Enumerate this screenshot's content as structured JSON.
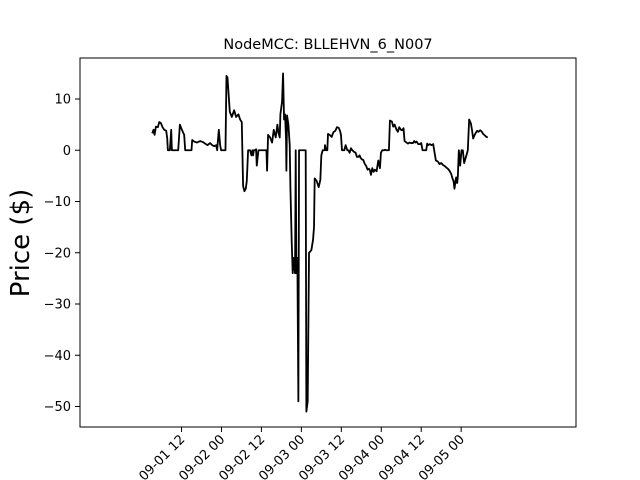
{
  "chart_data": {
    "type": "line",
    "title": "NodeMCC: BLLEHVN_6_N007",
    "xlabel": "",
    "ylabel": "Price ($)",
    "ylim": [
      -54,
      18
    ],
    "xlim_hours": [
      -18.5,
      130.5
    ],
    "grid": false,
    "legend": "none",
    "x_ticks": [
      {
        "label": "09-01 12",
        "hour": 12
      },
      {
        "label": "09-02 00",
        "hour": 24
      },
      {
        "label": "09-02 12",
        "hour": 36
      },
      {
        "label": "09-03 00",
        "hour": 48
      },
      {
        "label": "09-03 12",
        "hour": 60
      },
      {
        "label": "09-04 00",
        "hour": 72
      },
      {
        "label": "09-04 12",
        "hour": 84
      },
      {
        "label": "09-05 00",
        "hour": 96
      }
    ],
    "y_ticks": [
      10,
      0,
      -10,
      -20,
      -30,
      -40,
      -50
    ],
    "series": [
      {
        "color": "#000000",
        "points": [
          [
            3.2,
            3.3
          ],
          [
            3.6,
            4.0
          ],
          [
            3.9,
            3.0
          ],
          [
            4.3,
            4.6
          ],
          [
            4.9,
            4.5
          ],
          [
            5.3,
            5.5
          ],
          [
            5.8,
            5.3
          ],
          [
            6.3,
            4.5
          ],
          [
            6.8,
            4.0
          ],
          [
            7.4,
            3.8
          ],
          [
            7.7,
            2.3
          ],
          [
            7.9,
            0
          ],
          [
            8.5,
            0
          ],
          [
            8.9,
            4.0
          ],
          [
            9.1,
            0
          ],
          [
            10.2,
            0
          ],
          [
            11.0,
            0
          ],
          [
            11.5,
            5.0
          ],
          [
            12.1,
            4.0
          ],
          [
            12.8,
            3.0
          ],
          [
            13.1,
            0
          ],
          [
            13.9,
            0
          ],
          [
            15.0,
            0
          ],
          [
            15.2,
            2.0
          ],
          [
            15.8,
            1.7
          ],
          [
            16.6,
            1.5
          ],
          [
            17.6,
            1.8
          ],
          [
            18.4,
            1.6
          ],
          [
            19.1,
            1.3
          ],
          [
            19.8,
            1.0
          ],
          [
            20.6,
            1.4
          ],
          [
            21.2,
            1.0
          ],
          [
            21.8,
            0.8
          ],
          [
            22.4,
            1.0
          ],
          [
            22.7,
            0
          ],
          [
            23.2,
            4.0
          ],
          [
            23.6,
            1.0
          ],
          [
            23.9,
            0
          ],
          [
            24.6,
            0
          ],
          [
            25.2,
            0
          ],
          [
            25.5,
            14.5
          ],
          [
            25.8,
            14.2
          ],
          [
            26.5,
            7.5
          ],
          [
            27.1,
            6.5
          ],
          [
            27.8,
            7.8
          ],
          [
            28.4,
            6.5
          ],
          [
            29.1,
            7.0
          ],
          [
            29.6,
            6.0
          ],
          [
            30.1,
            5.5
          ],
          [
            30.5,
            -7.0
          ],
          [
            30.9,
            -8.0
          ],
          [
            31.3,
            -7.5
          ],
          [
            31.6,
            -6.0
          ],
          [
            32.0,
            0
          ],
          [
            32.6,
            0
          ],
          [
            33.0,
            -1.0
          ],
          [
            33.3,
            0
          ],
          [
            33.5,
            -1.0
          ],
          [
            33.7,
            0
          ],
          [
            34.1,
            0
          ],
          [
            34.4,
            0.2
          ],
          [
            34.6,
            -3.0
          ],
          [
            35.1,
            0
          ],
          [
            36.3,
            0
          ],
          [
            37.5,
            0
          ],
          [
            37.7,
            -4.0
          ],
          [
            38.0,
            3.0
          ],
          [
            38.6,
            2.5
          ],
          [
            39.2,
            1.5
          ],
          [
            39.7,
            4.0
          ],
          [
            40.3,
            2.5
          ],
          [
            40.8,
            5.0
          ],
          [
            41.1,
            3.5
          ],
          [
            41.5,
            2.5
          ],
          [
            41.7,
            7.0
          ],
          [
            42.2,
            9.5
          ],
          [
            42.5,
            15.0
          ],
          [
            42.8,
            6.0
          ],
          [
            43.1,
            7.0
          ],
          [
            43.4,
            2.0
          ],
          [
            43.5,
            -4.0
          ],
          [
            43.7,
            6.8
          ],
          [
            44.1,
            5.0
          ],
          [
            44.5,
            1.0
          ],
          [
            44.7,
            -7.0
          ],
          [
            45.1,
            -18.0
          ],
          [
            45.4,
            -24.0
          ],
          [
            45.7,
            -21.0
          ],
          [
            46.1,
            -24.0
          ],
          [
            46.3,
            0
          ],
          [
            46.5,
            -24.0
          ],
          [
            46.8,
            -21.0
          ],
          [
            47.1,
            -49.0
          ],
          [
            47.3,
            0
          ],
          [
            47.5,
            0
          ],
          [
            48.0,
            0
          ],
          [
            48.8,
            0
          ],
          [
            49.3,
            0
          ],
          [
            49.5,
            -51.0
          ],
          [
            49.9,
            -49.0
          ],
          [
            50.3,
            -20.0
          ],
          [
            51.0,
            -19.5
          ],
          [
            51.5,
            -17.5
          ],
          [
            51.8,
            -15.0
          ],
          [
            52.0,
            -5.5
          ],
          [
            52.6,
            -6.0
          ],
          [
            53.2,
            -7.2
          ],
          [
            53.7,
            -5.8
          ],
          [
            54.0,
            -1.0
          ],
          [
            54.4,
            0
          ],
          [
            55.0,
            0
          ],
          [
            55.1,
            1.0
          ],
          [
            55.4,
            0
          ],
          [
            55.8,
            0
          ],
          [
            56.0,
            3.2
          ],
          [
            56.5,
            3.0
          ],
          [
            57.1,
            2.6
          ],
          [
            57.6,
            3.5
          ],
          [
            58.2,
            3.8
          ],
          [
            58.7,
            4.5
          ],
          [
            59.2,
            4.4
          ],
          [
            59.6,
            3.8
          ],
          [
            59.9,
            3.0
          ],
          [
            60.2,
            0
          ],
          [
            60.9,
            0
          ],
          [
            61.3,
            1.0
          ],
          [
            61.8,
            0
          ],
          [
            62.1,
            0
          ],
          [
            62.5,
            -0.5
          ],
          [
            62.9,
            0.4
          ],
          [
            63.3,
            0
          ],
          [
            63.8,
            -0.3
          ],
          [
            64.3,
            -0.5
          ],
          [
            64.7,
            -1.3
          ],
          [
            65.1,
            -1.3
          ],
          [
            65.5,
            -1.0
          ],
          [
            65.8,
            -1.5
          ],
          [
            66.2,
            -1.8
          ],
          [
            66.6,
            -1.9
          ],
          [
            67.0,
            -2.6
          ],
          [
            67.5,
            -3.1
          ],
          [
            67.9,
            -3.8
          ],
          [
            68.3,
            -3.6
          ],
          [
            68.6,
            -3.9
          ],
          [
            68.9,
            -4.8
          ],
          [
            69.3,
            -3.5
          ],
          [
            69.7,
            -4.2
          ],
          [
            70.1,
            -3.8
          ],
          [
            70.6,
            -4.1
          ],
          [
            71.1,
            -2.0
          ],
          [
            71.6,
            -3.5
          ],
          [
            71.9,
            -0.5
          ],
          [
            72.3,
            0
          ],
          [
            72.8,
            0
          ],
          [
            73.2,
            0.1
          ],
          [
            73.5,
            0
          ],
          [
            74.0,
            0
          ],
          [
            74.3,
            0
          ],
          [
            74.6,
            5.8
          ],
          [
            75.2,
            5.6
          ],
          [
            75.6,
            4.6
          ],
          [
            76.0,
            5.0
          ],
          [
            76.6,
            4.0
          ],
          [
            77.0,
            3.6
          ],
          [
            77.4,
            4.5
          ],
          [
            77.9,
            4.0
          ],
          [
            78.3,
            3.9
          ],
          [
            78.7,
            4.3
          ],
          [
            79.0,
            1.8
          ],
          [
            79.6,
            1.5
          ],
          [
            80.0,
            1.3
          ],
          [
            80.5,
            1.5
          ],
          [
            81.0,
            1.4
          ],
          [
            81.5,
            1.4
          ],
          [
            81.9,
            1.8
          ],
          [
            82.2,
            1.5
          ],
          [
            82.6,
            1.7
          ],
          [
            83.1,
            1.2
          ],
          [
            83.6,
            1.2
          ],
          [
            84.0,
            1.4
          ],
          [
            84.4,
            0
          ],
          [
            84.9,
            0
          ],
          [
            85.5,
            0
          ],
          [
            85.8,
            1.3
          ],
          [
            86.1,
            1.0
          ],
          [
            86.6,
            1.2
          ],
          [
            87.1,
            1.0
          ],
          [
            87.6,
            1.2
          ],
          [
            87.9,
            0
          ],
          [
            88.4,
            -2.0
          ],
          [
            89.0,
            -2.2
          ],
          [
            89.5,
            -2.7
          ],
          [
            90.0,
            -2.5
          ],
          [
            90.6,
            -2.9
          ],
          [
            91.1,
            -3.1
          ],
          [
            91.6,
            -3.4
          ],
          [
            92.0,
            -3.6
          ],
          [
            92.5,
            -4.0
          ],
          [
            93.0,
            -4.6
          ],
          [
            93.4,
            -5.5
          ],
          [
            93.7,
            -6.0
          ],
          [
            94.0,
            -7.5
          ],
          [
            94.3,
            -6.0
          ],
          [
            94.5,
            -5.3
          ],
          [
            94.8,
            -6.4
          ],
          [
            95.0,
            -5.2
          ],
          [
            95.3,
            0
          ],
          [
            95.7,
            -3.0
          ],
          [
            96.1,
            0
          ],
          [
            96.5,
            0
          ],
          [
            96.9,
            -2.5
          ],
          [
            97.3,
            -1.6
          ],
          [
            97.8,
            -0.5
          ],
          [
            98.0,
            0
          ],
          [
            98.4,
            6.0
          ],
          [
            98.9,
            5.3
          ],
          [
            99.3,
            3.8
          ],
          [
            99.6,
            2.3
          ],
          [
            100.0,
            2.9
          ],
          [
            100.4,
            3.4
          ],
          [
            100.8,
            3.8
          ],
          [
            101.2,
            3.6
          ],
          [
            101.7,
            3.9
          ],
          [
            102.1,
            3.7
          ],
          [
            102.6,
            3.2
          ],
          [
            103.1,
            2.9
          ],
          [
            103.6,
            2.6
          ],
          [
            104.0,
            2.5
          ]
        ]
      }
    ]
  }
}
